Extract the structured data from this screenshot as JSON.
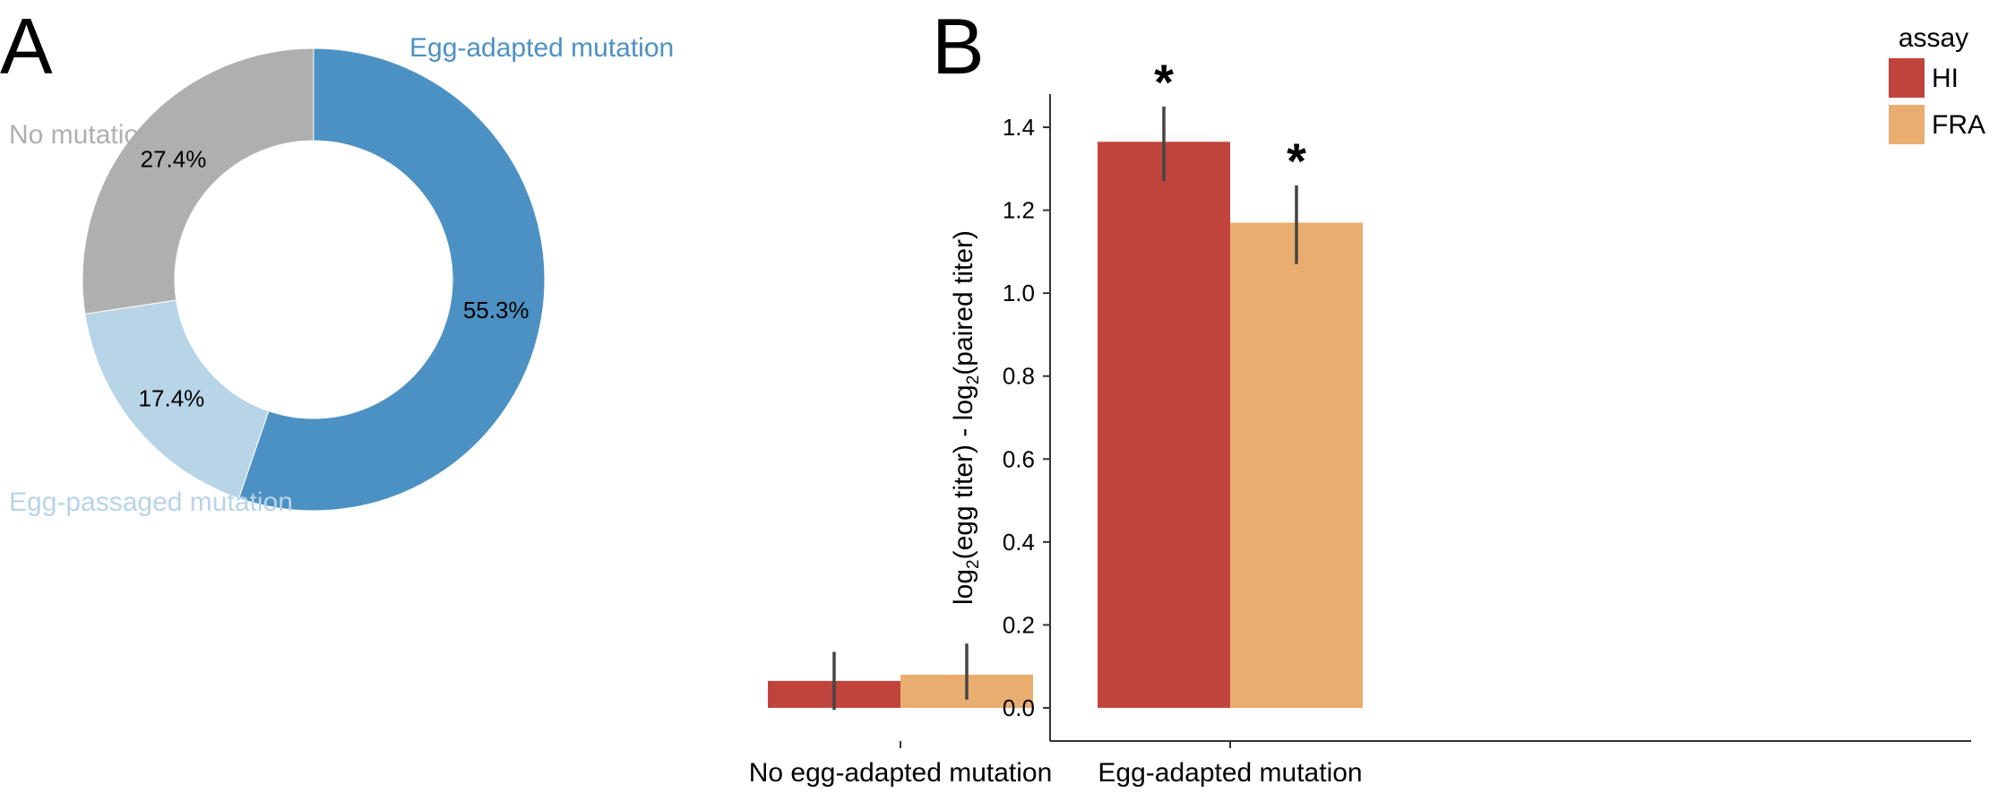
{
  "panels": {
    "a_label": "A",
    "b_label": "B"
  },
  "chart_data": [
    {
      "type": "pie",
      "panel": "A",
      "donut": true,
      "slices": [
        {
          "label": "Egg-adapted mutation",
          "value": 55.3,
          "value_label": "55.3%",
          "color": "#4c91c3"
        },
        {
          "label": "Egg-passaged mutation",
          "value": 17.4,
          "value_label": "17.4%",
          "color": "#b8d4e7"
        },
        {
          "label": "No mutation",
          "value": 27.4,
          "value_label": "27.4%",
          "color": "#afafaf"
        }
      ]
    },
    {
      "type": "bar",
      "panel": "B",
      "categories": [
        "No egg-adapted mutation",
        "Egg-adapted mutation"
      ],
      "series": [
        {
          "name": "HI",
          "color": "#c1443c",
          "values": [
            0.065,
            1.365
          ],
          "err_low": [
            -0.005,
            1.27
          ],
          "err_high": [
            0.135,
            1.45
          ],
          "marks": [
            "",
            "*"
          ]
        },
        {
          "name": "FRA",
          "color": "#eaad70",
          "values": [
            0.08,
            1.17
          ],
          "err_low": [
            0.02,
            1.07
          ],
          "err_high": [
            0.155,
            1.26
          ],
          "marks": [
            "",
            "*"
          ]
        }
      ],
      "ylabel_parts": [
        "log",
        "2",
        "(egg titer) - log",
        "2",
        "(paired titer)"
      ],
      "ylim": [
        -0.08,
        1.48
      ],
      "yticks": [
        "0.0",
        "0.2",
        "0.4",
        "0.6",
        "0.8",
        "1.0",
        "1.2",
        "1.4"
      ],
      "legend_title": "assay",
      "legend_position": "top-right",
      "grid": false
    }
  ]
}
